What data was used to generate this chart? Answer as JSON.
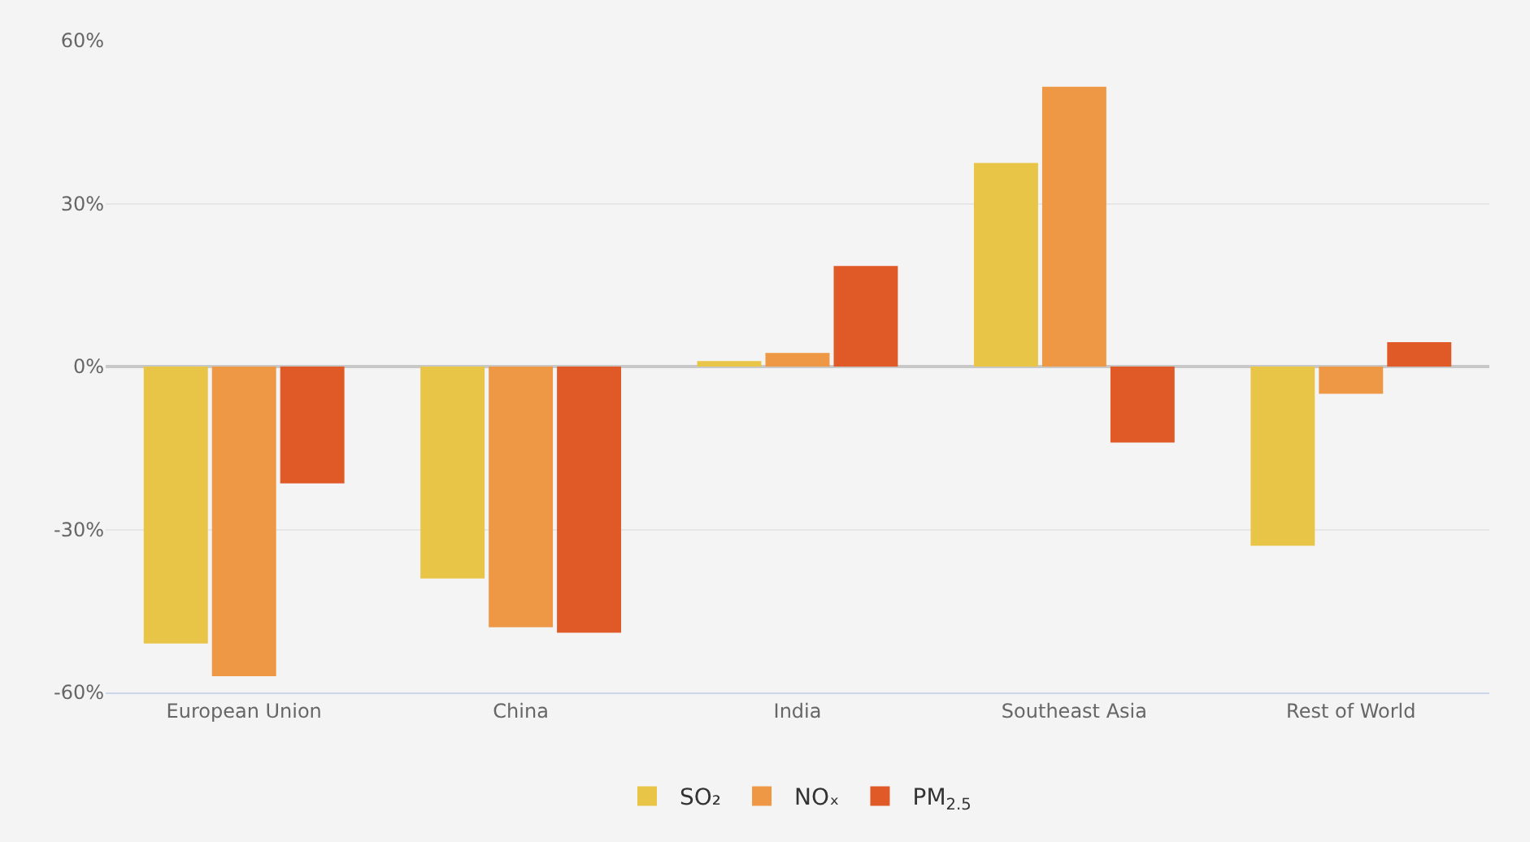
{
  "chart_data": {
    "type": "bar",
    "categories": [
      "European Union",
      "China",
      "India",
      "Southeast Asia",
      "Rest of World"
    ],
    "series": [
      {
        "name": "SO₂",
        "color": "#e8c547",
        "values": [
          -51,
          -39,
          1,
          37.5,
          -33
        ]
      },
      {
        "name": "NOₓ",
        "color": "#ee9845",
        "values": [
          -57,
          -48,
          2.5,
          51.5,
          -5
        ]
      },
      {
        "name": "PM$_{2.5}$",
        "color": "#e05a28",
        "values": [
          -21.5,
          -49,
          18.5,
          -14,
          4.5
        ]
      }
    ],
    "ylim": [
      -60,
      60
    ],
    "yticks": [
      {
        "value": -60,
        "label": "-60%"
      },
      {
        "value": -30,
        "label": "-30%"
      },
      {
        "value": 0,
        "label": "0%"
      },
      {
        "value": 30,
        "label": "30%"
      },
      {
        "value": 60,
        "label": "60%"
      }
    ],
    "grid": "y",
    "legend": "bottom"
  }
}
